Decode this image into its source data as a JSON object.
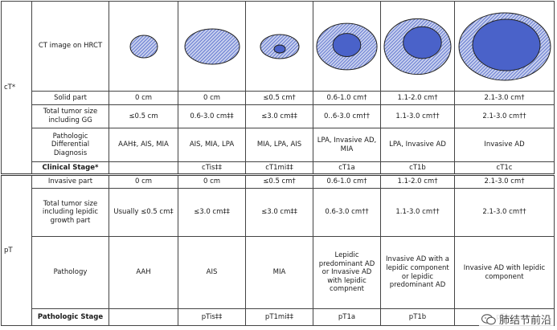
{
  "sections": {
    "ct": "cT*",
    "pt": "pT"
  },
  "ct_rows": {
    "ct_image": {
      "label": "CT image on HRCT"
    },
    "solid_part": {
      "label": "Solid part",
      "values": [
        "0 cm",
        "0 cm",
        "≤0.5 cm†",
        "0.6-1.0 cm†",
        "1.1-2.0 cm†",
        "2.1-3.0 cm†"
      ]
    },
    "total_size": {
      "label": "Total tumor size including GG",
      "values": [
        "≤0.5 cm",
        "0.6-3.0 cm‡‡",
        "≤3.0 cm‡‡",
        "0..6-3.0 cm††",
        "1.1-3.0 cm††",
        "2.1-3.0 cm††"
      ]
    },
    "differential": {
      "label": "Pathologic Differential Diagnosis",
      "values": [
        "AAH‡, AIS, MIA",
        "AIS, MIA, LPA",
        "MIA, LPA, AIS",
        "LPA, Invasive AD, MIA",
        "LPA, Invasive AD",
        "Invasive AD"
      ]
    },
    "clinical_stage": {
      "label": "Clinical Stage*",
      "values": [
        "",
        "cTis‡‡",
        "cT1mi‡‡",
        "cT1a",
        "cT1b",
        "cT1c"
      ]
    }
  },
  "pt_rows": {
    "invasive_part": {
      "label": "Invasive part",
      "values": [
        "0 cm",
        "0 cm",
        "≤0.5 cm†",
        "0.6-1.0 cm†",
        "1.1-2.0 cm†",
        "2.1-3.0 cm†"
      ]
    },
    "total_size": {
      "label": "Total tumor size including lepidic growth part",
      "values": [
        "Usually ≤0.5 cm‡",
        "≤3.0 cm‡‡",
        "≤3.0 cm‡‡",
        "0.6-3.0 cm††",
        "1.1-3.0 cm††",
        "2.1-3.0 cm††"
      ]
    },
    "pathology": {
      "label": "Pathology",
      "values": [
        "AAH",
        "AIS",
        "MIA",
        "Lepidic predominant AD or Invasive AD with lepidic compnent",
        "Invasive AD with a lepidic component or lepidic predominant AD",
        "Invasive AD with lepidic component"
      ]
    },
    "pathologic_stage": {
      "label": "Pathologic Stage",
      "values": [
        "",
        "pTis‡‡",
        "pT1mi‡‡",
        "pT1a",
        "pT1b",
        "pT1c"
      ]
    }
  },
  "watermark": {
    "text": "肺结节前沿",
    "icon": "wechat-icon"
  },
  "colors": {
    "lesion_fill": "#4a62c9",
    "hatch_bg": "#c9d1ee",
    "border": "#444444"
  }
}
